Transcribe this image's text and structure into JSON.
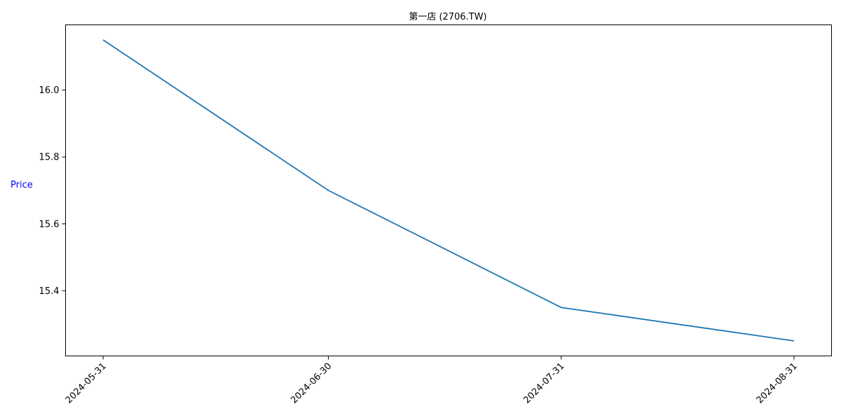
{
  "chart_data": {
    "type": "line",
    "title": "第一店 (2706.TW)",
    "xlabel": "",
    "ylabel": "Price",
    "x": [
      "2024-05-31",
      "2024-06-30",
      "2024-07-31",
      "2024-08-31"
    ],
    "series": [
      {
        "values": [
          16.15,
          15.7,
          15.35,
          15.25
        ]
      }
    ],
    "yticks": [
      "15.4",
      "15.6",
      "15.8",
      "16.0"
    ],
    "xticks": [
      "2024-05-31",
      "2024-06-30",
      "2024-07-31",
      "2024-08-31"
    ],
    "ylim": [
      15.205,
      16.195
    ],
    "xlim": [
      "2024-05-26",
      "2024-09-05"
    ],
    "grid": false,
    "legend": "none",
    "colors": {
      "line": "#1f77b4",
      "ylabel": "#0000ff"
    }
  }
}
